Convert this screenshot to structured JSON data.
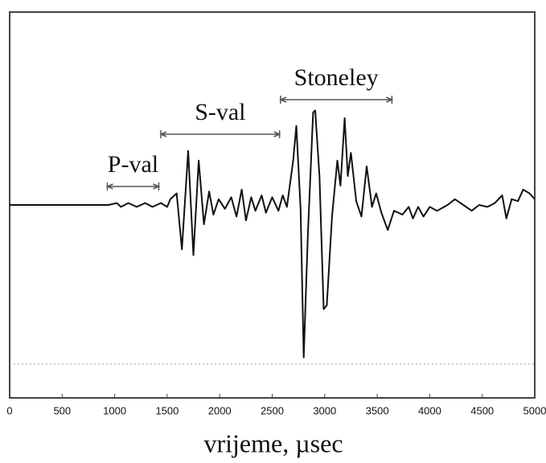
{
  "chart_data": {
    "type": "line",
    "x_label": "vrijeme, µsec",
    "x": [
      0,
      940,
      1020,
      1060,
      1130,
      1210,
      1290,
      1360,
      1440,
      1500,
      1530,
      1590,
      1640,
      1700,
      1750,
      1800,
      1850,
      1900,
      1940,
      1990,
      2050,
      2110,
      2160,
      2210,
      2250,
      2300,
      2340,
      2400,
      2440,
      2500,
      2560,
      2600,
      2640,
      2700,
      2730,
      2770,
      2800,
      2840,
      2890,
      2910,
      2950,
      2990,
      3020,
      3070,
      3120,
      3150,
      3190,
      3220,
      3250,
      3300,
      3350,
      3400,
      3450,
      3490,
      3540,
      3600,
      3660,
      3740,
      3800,
      3840,
      3890,
      3940,
      4000,
      4070,
      4170,
      4240,
      4320,
      4400,
      4470,
      4550,
      4620,
      4690,
      4730,
      4780,
      4840,
      4890,
      4950,
      5000
    ],
    "series": [
      {
        "color": "#111111",
        "values": [
          0,
          0,
          1,
          -1,
          1,
          -1,
          1,
          -1,
          1,
          -1,
          3,
          6,
          -23,
          28,
          -26,
          23,
          -10,
          7,
          -5,
          3,
          -2,
          4,
          -6,
          8,
          -8,
          4,
          -3,
          5,
          -4,
          4,
          -3,
          5,
          -1,
          23,
          41,
          -2,
          -79,
          -15,
          48,
          49,
          15,
          -54,
          -52,
          -6,
          23,
          10,
          45,
          15,
          27,
          2,
          -6,
          20,
          -1,
          6,
          -4,
          -13,
          -3,
          -5,
          -1,
          -7,
          -1,
          -6,
          -1,
          -3,
          0,
          3,
          0,
          -3,
          0,
          -1,
          1,
          5,
          -7,
          3,
          2,
          8,
          6,
          3
        ]
      }
    ],
    "xlim": [
      0,
      5000
    ],
    "ylim": [
      -100,
      100
    ],
    "xticks": [
      0,
      500,
      1000,
      1500,
      2000,
      2500,
      3000,
      3500,
      4000,
      4500,
      5000
    ],
    "annotations": [
      {
        "text": "P-val",
        "span": [
          930,
          1420
        ]
      },
      {
        "text": "S-val",
        "span": [
          1440,
          2570
        ]
      },
      {
        "text": "Stoneley",
        "span": [
          2580,
          3640
        ]
      }
    ]
  }
}
